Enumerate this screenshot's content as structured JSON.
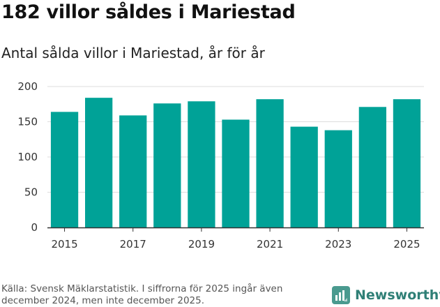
{
  "title": "182 villor såldes i Mariestad",
  "subtitle": "Antal sålda villor i Mariestad, år för år",
  "footer": {
    "source": "Källa: Svensk Mäklarstatistik. I siffrorna för 2025 ingår även december 2024, men inte december 2025.",
    "brand": "Newsworthy"
  },
  "colors": {
    "bar": "#00a297",
    "grid": "#dddddd",
    "axis": "#333333",
    "brand": "#2f7f76"
  },
  "chart_data": {
    "type": "bar",
    "title": "182 villor såldes i Mariestad",
    "subtitle": "Antal sålda villor i Mariestad, år för år",
    "xlabel": "",
    "ylabel": "",
    "categories": [
      "2015",
      "2016",
      "2017",
      "2018",
      "2019",
      "2020",
      "2021",
      "2022",
      "2023",
      "2024",
      "2025"
    ],
    "values": [
      164,
      184,
      159,
      176,
      179,
      153,
      182,
      143,
      138,
      171,
      182
    ],
    "ylim": [
      0,
      200
    ],
    "yticks": [
      "0",
      "50",
      "100",
      "150",
      "200"
    ],
    "xticks_shown": [
      "2015",
      "2017",
      "2019",
      "2021",
      "2023",
      "2025"
    ],
    "grid": true,
    "legend": "none"
  }
}
